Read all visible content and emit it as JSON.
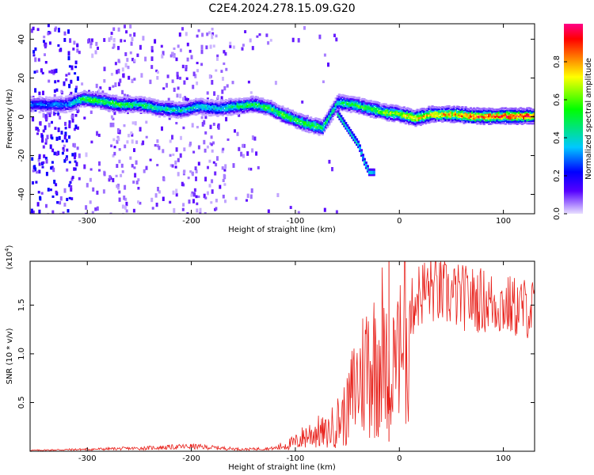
{
  "title": "C2E4.2024.278.15.09.G20",
  "chart_data": [
    {
      "type": "heatmap",
      "title": "C2E4.2024.278.15.09.G20",
      "xlabel": "Height of straight line (km)",
      "ylabel": "Frequency (Hz)",
      "xlim": [
        -355,
        130
      ],
      "ylim": [
        -50,
        48
      ],
      "x_ticks": [
        -300,
        -200,
        -100,
        0,
        100
      ],
      "y_ticks": [
        -40,
        -20,
        0,
        20,
        40
      ],
      "colorbar": {
        "label": "Normalized spectral amplitude",
        "range": [
          0.0,
          1.0
        ],
        "ticks": [
          0.0,
          0.2,
          0.4,
          0.6,
          0.8
        ],
        "colormap": [
          "#e8e0ff",
          "#5500ff",
          "#0000ff",
          "#00c8ff",
          "#00ff00",
          "#ffff00",
          "#ff8000",
          "#ff0000",
          "#ff0088"
        ]
      },
      "ridge": [
        {
          "x": -350,
          "y": 7,
          "a": 0.3
        },
        {
          "x": -320,
          "y": 7,
          "a": 0.35
        },
        {
          "x": -305,
          "y": 10,
          "a": 0.55
        },
        {
          "x": -290,
          "y": 9,
          "a": 0.6
        },
        {
          "x": -270,
          "y": 7,
          "a": 0.55
        },
        {
          "x": -250,
          "y": 7,
          "a": 0.5
        },
        {
          "x": -230,
          "y": 5,
          "a": 0.5
        },
        {
          "x": -210,
          "y": 4,
          "a": 0.45
        },
        {
          "x": -195,
          "y": 6,
          "a": 0.45
        },
        {
          "x": -175,
          "y": 5,
          "a": 0.4
        },
        {
          "x": -160,
          "y": 6,
          "a": 0.5
        },
        {
          "x": -140,
          "y": 7,
          "a": 0.55
        },
        {
          "x": -125,
          "y": 5,
          "a": 0.6
        },
        {
          "x": -110,
          "y": 1,
          "a": 0.6
        },
        {
          "x": -90,
          "y": -3,
          "a": 0.6
        },
        {
          "x": -75,
          "y": -5,
          "a": 0.55
        },
        {
          "x": -60,
          "y": 8,
          "a": 0.5
        },
        {
          "x": -45,
          "y": 7,
          "a": 0.55
        },
        {
          "x": -30,
          "y": 5,
          "a": 0.6
        },
        {
          "x": -15,
          "y": 3,
          "a": 0.65
        },
        {
          "x": 0,
          "y": 2,
          "a": 0.75
        },
        {
          "x": 15,
          "y": 0,
          "a": 0.8
        },
        {
          "x": 30,
          "y": 2,
          "a": 0.8
        },
        {
          "x": 50,
          "y": 2,
          "a": 0.85
        },
        {
          "x": 70,
          "y": 1,
          "a": 0.9
        },
        {
          "x": 90,
          "y": 1,
          "a": 0.95
        },
        {
          "x": 110,
          "y": 1,
          "a": 1.0
        },
        {
          "x": 130,
          "y": 1,
          "a": 1.0
        }
      ],
      "branch": [
        {
          "x": -60,
          "y": 2,
          "a": 0.45
        },
        {
          "x": -50,
          "y": -6,
          "a": 0.45
        },
        {
          "x": -40,
          "y": -14,
          "a": 0.45
        },
        {
          "x": -35,
          "y": -22,
          "a": 0.4
        },
        {
          "x": -30,
          "y": -28,
          "a": 0.4
        },
        {
          "x": -25,
          "y": -28,
          "a": 0.35
        }
      ]
    },
    {
      "type": "line",
      "xlabel": "Height of straight line (km)",
      "ylabel": "SNR (10 * v/v)",
      "y_multiplier_label": "(x10^4)",
      "xlim": [
        -355,
        130
      ],
      "ylim": [
        0,
        1.95
      ],
      "x_ticks": [
        -300,
        -200,
        -100,
        0,
        100
      ],
      "y_ticks": [
        0.5,
        1.0,
        1.5
      ],
      "color": "#e8201a",
      "x": [
        -350,
        -300,
        -250,
        -200,
        -150,
        -120,
        -110,
        -100,
        -90,
        -80,
        -70,
        -60,
        -50,
        -45,
        -40,
        -35,
        -30,
        -25,
        -20,
        -15,
        -10,
        -5,
        0,
        5,
        10,
        15,
        20,
        25,
        30,
        40,
        50,
        60,
        70,
        80,
        90,
        100,
        110,
        120,
        130
      ],
      "y": [
        0.01,
        0.02,
        0.03,
        0.05,
        0.02,
        0.03,
        0.06,
        0.09,
        0.16,
        0.2,
        0.18,
        0.3,
        0.4,
        0.6,
        0.7,
        0.8,
        0.95,
        0.9,
        1.0,
        1.1,
        1.05,
        1.15,
        1.3,
        1.25,
        1.4,
        1.55,
        1.62,
        1.65,
        1.68,
        1.62,
        1.6,
        1.58,
        1.56,
        1.55,
        1.52,
        1.5,
        1.48,
        1.47,
        1.46
      ],
      "spike": {
        "x": -10,
        "y": 1.95
      }
    }
  ]
}
